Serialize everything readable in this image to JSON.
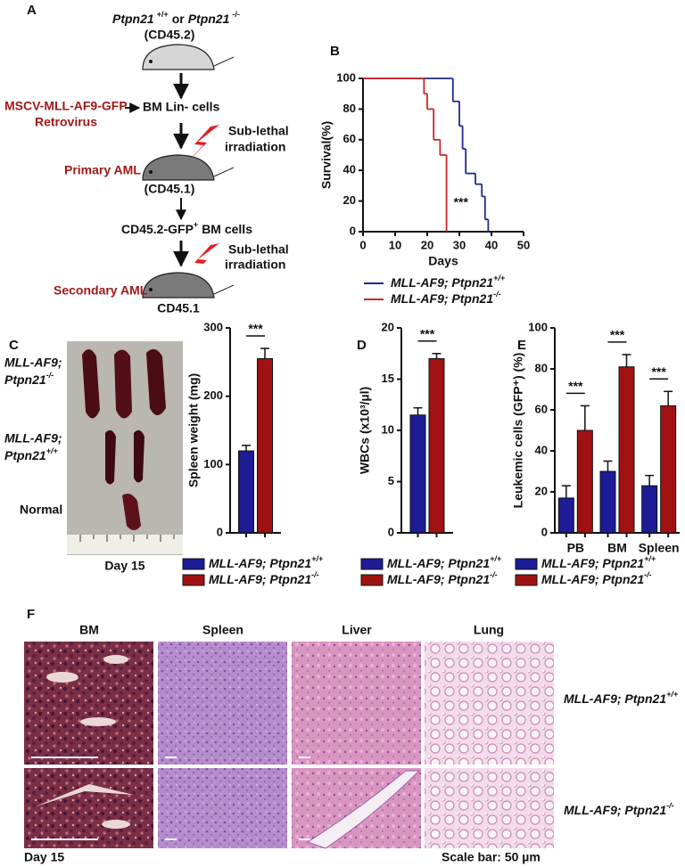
{
  "panel_a": {
    "label": "A",
    "genotype": {
      "gene1": "Ptpn21",
      "sup1": "+/+",
      "or": "or",
      "gene2": "Ptpn21",
      "sup2": "-/-"
    },
    "donor": "(CD45.2)",
    "virus": "MSCV-MLL-AF9-GFP",
    "virus2": "Retrovirus",
    "cells": "BM Lin- cells",
    "irradiation1": [
      "Sub-lethal",
      "irradiation"
    ],
    "primary": "Primary AML",
    "primary_host": "(CD45.1)",
    "transfer": {
      "text": "CD45.2-GFP",
      "sup": "+",
      "rest": "BM cells"
    },
    "irradiation2": [
      "Sub-lethal",
      "irradiation"
    ],
    "secondary": "Secondary AML",
    "secondary_host": "CD45.1"
  },
  "chart_data": [
    {
      "type": "line",
      "step": true,
      "panel": "B",
      "xlabel": "Days",
      "ylabel": "Survival(%)",
      "annotation": "***",
      "xlim": [
        0,
        50
      ],
      "ylim": [
        0,
        100
      ],
      "xticks": [
        0,
        10,
        20,
        30,
        40,
        50
      ],
      "yticks": [
        0,
        20,
        40,
        60,
        80,
        100
      ],
      "series": [
        {
          "name": "MLL-AF9; Ptpn21",
          "name_superscript": "+/+",
          "color": "#1f2a8a",
          "x": [
            0,
            28,
            30,
            31,
            32,
            35,
            37,
            38,
            39
          ],
          "values": [
            100,
            85,
            69,
            54,
            38,
            31,
            23,
            8,
            0
          ]
        },
        {
          "name": "MLL-AF9; Ptpn21",
          "name_superscript": "-/-",
          "color": "#c8282a",
          "x": [
            0,
            19,
            20,
            22,
            24,
            26
          ],
          "values": [
            100,
            90,
            80,
            60,
            50,
            0
          ]
        }
      ]
    },
    {
      "type": "bar",
      "panel": "C",
      "ylabel": "Spleen weight (mg)",
      "ylim": [
        0,
        300
      ],
      "yticks": [
        0,
        100,
        200,
        300
      ],
      "categories": [
        null
      ],
      "significance": [
        "***"
      ],
      "series": [
        {
          "name": "MLL-AF9; Ptpn21",
          "name_superscript": "+/+",
          "color": "#1c1c96",
          "values": [
            120
          ],
          "errors": [
            8
          ]
        },
        {
          "name": "MLL-AF9; Ptpn21",
          "name_superscript": "-/-",
          "color": "#a01212",
          "values": [
            255
          ],
          "errors": [
            15
          ]
        }
      ]
    },
    {
      "type": "bar",
      "panel": "D",
      "ylabel": "WBCs (x10³/µl)",
      "ylim": [
        0,
        20
      ],
      "yticks": [
        0,
        5,
        10,
        15,
        20
      ],
      "categories": [
        null
      ],
      "significance": [
        "***"
      ],
      "series": [
        {
          "name": "MLL-AF9; Ptpn21",
          "name_superscript": "+/+",
          "color": "#1c1c96",
          "values": [
            11.5
          ],
          "errors": [
            0.7
          ]
        },
        {
          "name": "MLL-AF9; Ptpn21",
          "name_superscript": "-/-",
          "color": "#a01212",
          "values": [
            17
          ],
          "errors": [
            0.5
          ]
        }
      ]
    },
    {
      "type": "bar",
      "panel": "E",
      "ylabel": "Leukemic cells (GFP⁺) (%)",
      "ylim": [
        0,
        100
      ],
      "yticks": [
        0,
        20,
        40,
        60,
        80,
        100
      ],
      "categories": [
        "PB",
        "BM",
        "Spleen"
      ],
      "significance": [
        "***",
        "***",
        "***"
      ],
      "series": [
        {
          "name": "MLL-AF9; Ptpn21",
          "name_superscript": "+/+",
          "color": "#1c1c96",
          "values": [
            17,
            30,
            23
          ],
          "errors": [
            6,
            5,
            5
          ]
        },
        {
          "name": "MLL-AF9; Ptpn21",
          "name_superscript": "-/-",
          "color": "#a01212",
          "values": [
            50,
            81,
            62
          ],
          "errors": [
            12,
            6,
            7
          ]
        }
      ]
    }
  ],
  "panel_c_photo": {
    "rows": [
      {
        "line1": "MLL-AF9;",
        "gene": "Ptpn21",
        "sup": "-/-"
      },
      {
        "line1": "MLL-AF9;",
        "gene": "Ptpn21",
        "sup": "+/+"
      },
      {
        "line1": "Normal"
      }
    ],
    "day": "Day 15"
  },
  "panel_f": {
    "label": "F",
    "columns": [
      "BM",
      "Spleen",
      "Liver",
      "Lung"
    ],
    "rows": [
      {
        "name": "MLL-AF9; Ptpn21",
        "sup": "+/+"
      },
      {
        "name": "MLL-AF9; Ptpn21",
        "sup": "-/-"
      }
    ],
    "day": "Day 15",
    "scale_bar": "Scale bar: 50 µm"
  }
}
